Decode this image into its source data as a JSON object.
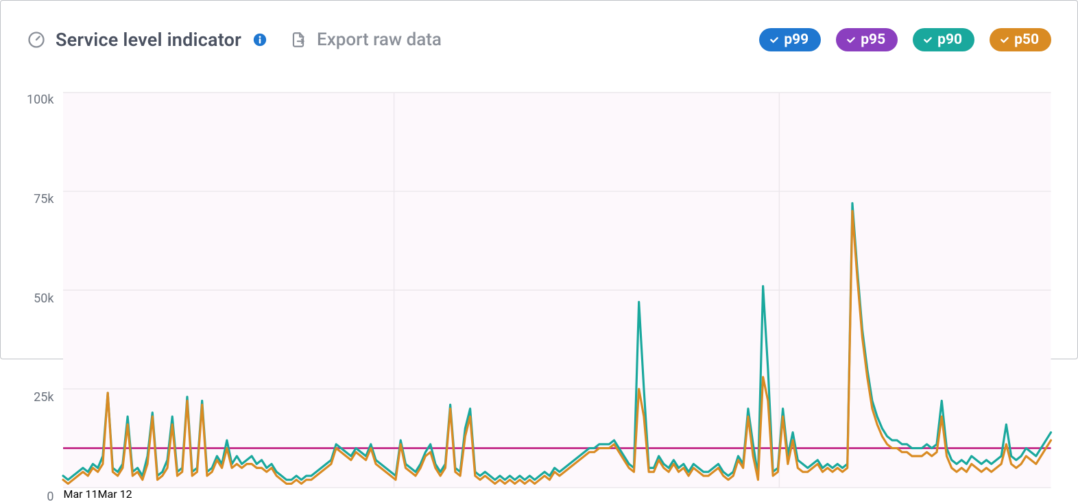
{
  "header": {
    "title": "Service level indicator",
    "export_label": "Export raw data"
  },
  "legend": [
    {
      "key": "p99",
      "label": "p99",
      "color": "#1f77d0"
    },
    {
      "key": "p95",
      "label": "p95",
      "color": "#8b3fbf"
    },
    {
      "key": "p90",
      "label": "p90",
      "color": "#1aa89d"
    },
    {
      "key": "p50",
      "label": "p50",
      "color": "#d98b23"
    }
  ],
  "chart": {
    "type": "line",
    "background_color": "#fdf8fc",
    "grid_color": "#ece7ec",
    "line_width": 2.2,
    "y": {
      "min": 0,
      "max": 100000,
      "ticks": [
        0,
        25000,
        50000,
        75000,
        100000
      ],
      "tick_labels": [
        "0",
        "25k",
        "50k",
        "75k",
        "100k"
      ],
      "label_color": "#6a717c",
      "label_fontsize": 18
    },
    "x": {
      "min": 0,
      "max": 200,
      "ticks": [
        67,
        145
      ],
      "tick_labels": [
        "Mar 11",
        "Mar 12"
      ],
      "label_color": "#6a717c",
      "label_fontsize": 18
    },
    "threshold": {
      "value": 10000,
      "color": "#c4308b",
      "width": 2
    },
    "series": {
      "p90": {
        "color": "#1aa89d",
        "values": [
          3,
          2,
          3,
          4,
          5,
          4,
          6,
          5,
          8,
          24,
          5,
          4,
          6,
          18,
          4,
          5,
          3,
          8,
          19,
          3,
          4,
          7,
          18,
          4,
          5,
          23,
          4,
          5,
          22,
          4,
          5,
          8,
          6,
          12,
          6,
          8,
          6,
          7,
          8,
          6,
          7,
          5,
          6,
          4,
          3,
          2,
          2,
          3,
          2,
          3,
          3,
          4,
          5,
          6,
          7,
          11,
          10,
          9,
          8,
          10,
          9,
          8,
          11,
          7,
          6,
          5,
          4,
          3,
          12,
          6,
          5,
          4,
          6,
          9,
          11,
          6,
          4,
          6,
          21,
          5,
          4,
          15,
          20,
          4,
          3,
          4,
          3,
          2,
          3,
          2,
          3,
          2,
          3,
          2,
          3,
          2,
          3,
          4,
          3,
          5,
          4,
          5,
          6,
          7,
          8,
          9,
          10,
          10,
          11,
          11,
          11,
          12,
          10,
          8,
          6,
          5,
          47,
          25,
          5,
          5,
          8,
          6,
          5,
          7,
          5,
          6,
          4,
          6,
          5,
          4,
          4,
          5,
          6,
          4,
          3,
          4,
          8,
          6,
          20,
          11,
          3,
          51,
          30,
          4,
          5,
          20,
          8,
          14,
          7,
          6,
          5,
          6,
          7,
          5,
          6,
          5,
          6,
          5,
          6,
          72,
          55,
          40,
          30,
          22,
          18,
          15,
          13,
          12,
          12,
          11,
          11,
          10,
          10,
          10,
          11,
          10,
          11,
          22,
          10,
          7,
          6,
          7,
          6,
          8,
          7,
          6,
          7,
          6,
          7,
          8,
          16,
          8,
          7,
          8,
          10,
          9,
          8,
          10,
          12,
          14
        ]
      },
      "p50": {
        "color": "#d98b23",
        "values": [
          2,
          1,
          2,
          3,
          4,
          3,
          5,
          4,
          6,
          24,
          4,
          3,
          5,
          16,
          3,
          4,
          2,
          6,
          18,
          2,
          3,
          5,
          16,
          3,
          4,
          22,
          3,
          4,
          21,
          3,
          4,
          7,
          5,
          10,
          5,
          6,
          5,
          6,
          6,
          5,
          5,
          4,
          5,
          3,
          2,
          1,
          1,
          2,
          1,
          2,
          2,
          3,
          4,
          5,
          6,
          10,
          9,
          8,
          7,
          9,
          8,
          7,
          10,
          6,
          5,
          4,
          3,
          2,
          11,
          5,
          4,
          3,
          5,
          8,
          9,
          5,
          3,
          5,
          20,
          4,
          3,
          13,
          18,
          3,
          2,
          3,
          2,
          1,
          2,
          1,
          2,
          1,
          2,
          1,
          2,
          1,
          2,
          3,
          2,
          4,
          3,
          4,
          5,
          6,
          7,
          8,
          9,
          9,
          10,
          10,
          10,
          11,
          9,
          7,
          5,
          4,
          25,
          18,
          4,
          4,
          7,
          5,
          4,
          6,
          4,
          5,
          3,
          5,
          4,
          3,
          3,
          4,
          5,
          3,
          2,
          3,
          7,
          5,
          18,
          8,
          2,
          28,
          22,
          3,
          4,
          18,
          6,
          12,
          5,
          4,
          4,
          5,
          6,
          4,
          5,
          4,
          5,
          4,
          5,
          70,
          53,
          38,
          28,
          20,
          16,
          13,
          11,
          10,
          10,
          9,
          9,
          8,
          8,
          8,
          9,
          8,
          9,
          18,
          8,
          5,
          4,
          5,
          4,
          6,
          5,
          4,
          5,
          4,
          5,
          6,
          11,
          6,
          5,
          6,
          8,
          7,
          6,
          8,
          10,
          12
        ]
      }
    }
  }
}
